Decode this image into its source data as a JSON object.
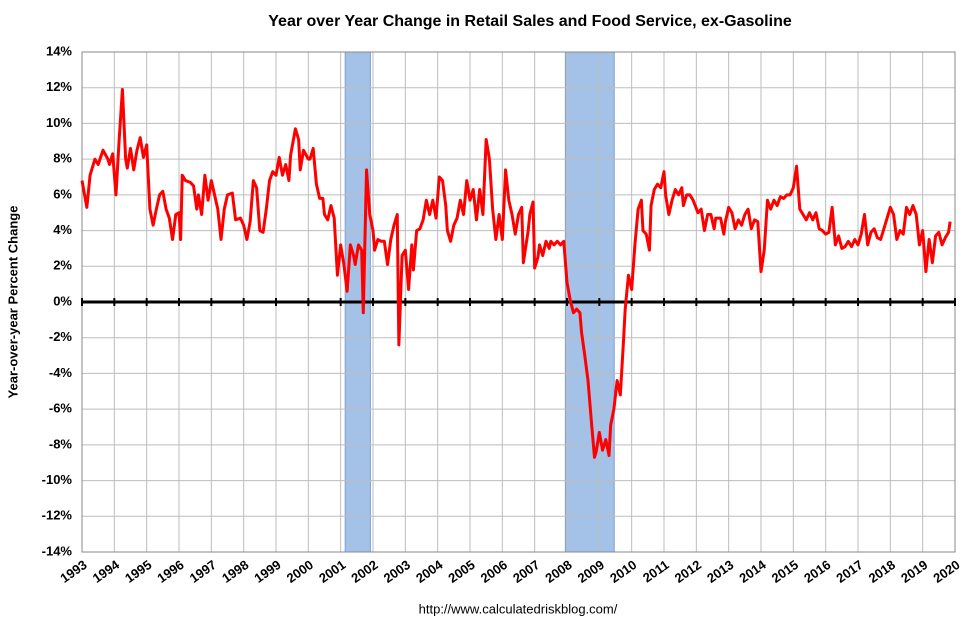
{
  "chart_data": {
    "type": "line",
    "title": "Year over Year Change in Retail Sales and Food Service, ex-Gasoline",
    "y_label": "Year-over-year Percent Change",
    "source": "http://www.calculatedriskblog.com/",
    "xlim": [
      1993,
      2020
    ],
    "xticks": [
      1993,
      1994,
      1995,
      1996,
      1997,
      1998,
      1999,
      2000,
      2001,
      2002,
      2003,
      2004,
      2005,
      2006,
      2007,
      2008,
      2009,
      2010,
      2011,
      2012,
      2013,
      2014,
      2015,
      2016,
      2017,
      2018,
      2019,
      2020
    ],
    "ylim": [
      -14,
      14
    ],
    "yticks": [
      {
        "value": -14,
        "label": "-14%"
      },
      {
        "value": -12,
        "label": "-12%"
      },
      {
        "value": -10,
        "label": "-10%"
      },
      {
        "value": -8,
        "label": "-8%"
      },
      {
        "value": -6,
        "label": "-6%"
      },
      {
        "value": -4,
        "label": "-4%"
      },
      {
        "value": -2,
        "label": "-2%"
      },
      {
        "value": 0,
        "label": "0%"
      },
      {
        "value": 2,
        "label": "2%"
      },
      {
        "value": 4,
        "label": "4%"
      },
      {
        "value": 6,
        "label": "6%"
      },
      {
        "value": 8,
        "label": "8%"
      },
      {
        "value": 10,
        "label": "10%"
      },
      {
        "value": 12,
        "label": "12%"
      },
      {
        "value": 14,
        "label": "14%"
      }
    ],
    "grid": true,
    "recession_color": "#a4c2e8",
    "recessions": [
      {
        "start": 2001.14,
        "end": 2001.92
      },
      {
        "start": 2007.95,
        "end": 2009.46
      }
    ],
    "series": [
      {
        "color": "#ff0000",
        "x": [
          1993.0,
          1993.15,
          1993.25,
          1993.4,
          1993.5,
          1993.65,
          1993.8,
          1993.85,
          1993.95,
          1994.05,
          1994.15,
          1994.25,
          1994.35,
          1994.4,
          1994.5,
          1994.6,
          1994.7,
          1994.8,
          1994.9,
          1995.0,
          1995.1,
          1995.2,
          1995.3,
          1995.4,
          1995.5,
          1995.6,
          1995.7,
          1995.8,
          1995.9,
          1996.0,
          1996.05,
          1996.1,
          1996.2,
          1996.35,
          1996.45,
          1996.55,
          1996.6,
          1996.7,
          1996.8,
          1996.9,
          1997.0,
          1997.1,
          1997.2,
          1997.3,
          1997.4,
          1997.5,
          1997.65,
          1997.75,
          1997.9,
          1998.0,
          1998.1,
          1998.2,
          1998.3,
          1998.4,
          1998.5,
          1998.6,
          1998.7,
          1998.8,
          1998.9,
          1999.0,
          1999.1,
          1999.2,
          1999.3,
          1999.4,
          1999.45,
          1999.6,
          1999.7,
          1999.75,
          1999.85,
          2000.0,
          2000.05,
          2000.15,
          2000.25,
          2000.35,
          2000.45,
          2000.5,
          2000.6,
          2000.7,
          2000.8,
          2000.9,
          2001.0,
          2001.1,
          2001.2,
          2001.3,
          2001.4,
          2001.45,
          2001.55,
          2001.65,
          2001.7,
          2001.8,
          2001.9,
          2002.0,
          2002.05,
          2002.15,
          2002.25,
          2002.35,
          2002.45,
          2002.55,
          2002.65,
          2002.75,
          2002.8,
          2002.9,
          2003.0,
          2003.1,
          2003.2,
          2003.25,
          2003.35,
          2003.45,
          2003.55,
          2003.65,
          2003.75,
          2003.85,
          2003.95,
          2004.05,
          2004.15,
          2004.25,
          2004.3,
          2004.4,
          2004.5,
          2004.6,
          2004.7,
          2004.8,
          2004.9,
          2005.0,
          2005.1,
          2005.2,
          2005.3,
          2005.4,
          2005.5,
          2005.6,
          2005.7,
          2005.8,
          2005.9,
          2006.0,
          2006.1,
          2006.2,
          2006.3,
          2006.4,
          2006.5,
          2006.6,
          2006.65,
          2006.8,
          2006.85,
          2006.95,
          2007.0,
          2007.1,
          2007.15,
          2007.25,
          2007.35,
          2007.45,
          2007.5,
          2007.6,
          2007.7,
          2007.8,
          2007.9,
          2008.0,
          2008.1,
          2008.2,
          2008.3,
          2008.4,
          2008.45,
          2008.55,
          2008.65,
          2008.75,
          2008.85,
          2008.9,
          2009.0,
          2009.1,
          2009.2,
          2009.3,
          2009.35,
          2009.45,
          2009.55,
          2009.65,
          2009.75,
          2009.8,
          2009.9,
          2010.0,
          2010.1,
          2010.2,
          2010.3,
          2010.35,
          2010.45,
          2010.55,
          2010.6,
          2010.7,
          2010.8,
          2010.9,
          2011.0,
          2011.05,
          2011.15,
          2011.25,
          2011.35,
          2011.45,
          2011.55,
          2011.6,
          2011.7,
          2011.8,
          2011.9,
          2012.05,
          2012.15,
          2012.25,
          2012.35,
          2012.45,
          2012.55,
          2012.6,
          2012.75,
          2012.85,
          2012.9,
          2013.0,
          2013.1,
          2013.2,
          2013.3,
          2013.4,
          2013.5,
          2013.6,
          2013.7,
          2013.8,
          2013.9,
          2014.0,
          2014.1,
          2014.2,
          2014.3,
          2014.4,
          2014.5,
          2014.6,
          2014.7,
          2014.8,
          2014.9,
          2015.0,
          2015.1,
          2015.2,
          2015.3,
          2015.4,
          2015.5,
          2015.6,
          2015.7,
          2015.8,
          2015.9,
          2016.0,
          2016.1,
          2016.2,
          2016.3,
          2016.4,
          2016.5,
          2016.6,
          2016.7,
          2016.8,
          2016.9,
          2017.0,
          2017.1,
          2017.2,
          2017.3,
          2017.4,
          2017.5,
          2017.6,
          2017.7,
          2017.8,
          2017.9,
          2018.0,
          2018.1,
          2018.2,
          2018.3,
          2018.4,
          2018.5,
          2018.6,
          2018.7,
          2018.8,
          2018.9,
          2019.0,
          2019.1,
          2019.2,
          2019.3,
          2019.4,
          2019.5,
          2019.6,
          2019.7,
          2019.8,
          2019.85
        ],
        "values": [
          6.8,
          5.3,
          7.1,
          8.0,
          7.7,
          8.5,
          8.0,
          7.7,
          8.3,
          6.0,
          9.1,
          11.9,
          8.0,
          7.5,
          8.6,
          7.4,
          8.5,
          9.2,
          8.1,
          8.8,
          5.2,
          4.3,
          5.2,
          6.0,
          6.2,
          5.2,
          4.7,
          3.5,
          4.9,
          5.0,
          3.5,
          7.1,
          6.8,
          6.7,
          6.5,
          5.2,
          6.0,
          4.9,
          7.1,
          5.7,
          6.8,
          6.0,
          5.2,
          3.5,
          5.2,
          6.0,
          6.1,
          4.6,
          4.7,
          4.3,
          3.5,
          4.5,
          6.8,
          6.4,
          4.0,
          3.9,
          5.2,
          6.8,
          7.3,
          7.1,
          8.1,
          7.1,
          7.7,
          6.8,
          8.2,
          9.7,
          9.1,
          7.4,
          8.5,
          8.0,
          8.0,
          8.6,
          6.6,
          5.8,
          5.8,
          4.9,
          4.6,
          5.4,
          4.7,
          1.5,
          3.2,
          2.1,
          0.6,
          3.2,
          2.6,
          2.1,
          3.2,
          2.9,
          -0.6,
          7.4,
          4.9,
          4.0,
          2.9,
          3.5,
          3.4,
          3.4,
          2.1,
          3.5,
          4.3,
          4.9,
          -2.4,
          2.6,
          2.9,
          0.7,
          3.2,
          1.8,
          4.0,
          4.1,
          4.6,
          5.7,
          4.9,
          5.7,
          4.7,
          7.0,
          6.8,
          5.4,
          4.0,
          3.4,
          4.3,
          4.7,
          5.7,
          4.9,
          6.8,
          5.7,
          6.3,
          4.6,
          6.3,
          4.9,
          9.1,
          8.0,
          5.2,
          3.5,
          4.9,
          3.5,
          7.4,
          5.7,
          4.9,
          3.8,
          4.9,
          5.3,
          2.2,
          4.0,
          4.9,
          5.6,
          1.9,
          2.5,
          3.2,
          2.6,
          3.4,
          3.0,
          3.4,
          3.2,
          3.4,
          3.2,
          3.4,
          1.1,
          0.1,
          -0.6,
          -0.4,
          -0.6,
          -1.7,
          -3.0,
          -4.4,
          -6.6,
          -8.7,
          -8.4,
          -7.3,
          -8.3,
          -7.7,
          -8.6,
          -6.9,
          -6.0,
          -4.4,
          -5.2,
          -2.1,
          -0.4,
          1.5,
          0.7,
          3.2,
          5.2,
          5.7,
          4.0,
          3.8,
          2.9,
          5.4,
          6.3,
          6.6,
          6.4,
          7.3,
          6.0,
          4.9,
          5.7,
          6.3,
          6.0,
          6.4,
          5.4,
          6.0,
          6.0,
          5.7,
          5.0,
          5.2,
          4.0,
          4.9,
          4.9,
          4.1,
          4.7,
          4.7,
          3.8,
          4.5,
          5.3,
          5.0,
          4.1,
          4.6,
          4.3,
          4.9,
          5.2,
          4.1,
          4.6,
          4.5,
          1.7,
          2.9,
          5.7,
          5.2,
          5.7,
          5.4,
          5.9,
          5.8,
          6.0,
          6.0,
          6.4,
          7.6,
          5.2,
          4.9,
          4.6,
          5.0,
          4.6,
          5.0,
          4.1,
          4.0,
          3.8,
          3.9,
          5.3,
          3.2,
          3.7,
          3.0,
          3.1,
          3.4,
          3.1,
          3.5,
          3.2,
          3.8,
          4.9,
          3.2,
          3.9,
          4.1,
          3.6,
          3.5,
          4.1,
          4.7,
          5.3,
          4.9,
          3.5,
          4.0,
          3.8,
          5.3,
          4.9,
          5.4,
          4.9,
          3.2,
          4.0,
          1.7,
          3.5,
          2.2,
          3.7,
          3.9,
          3.2,
          3.6,
          3.9,
          4.5
        ]
      }
    ]
  }
}
